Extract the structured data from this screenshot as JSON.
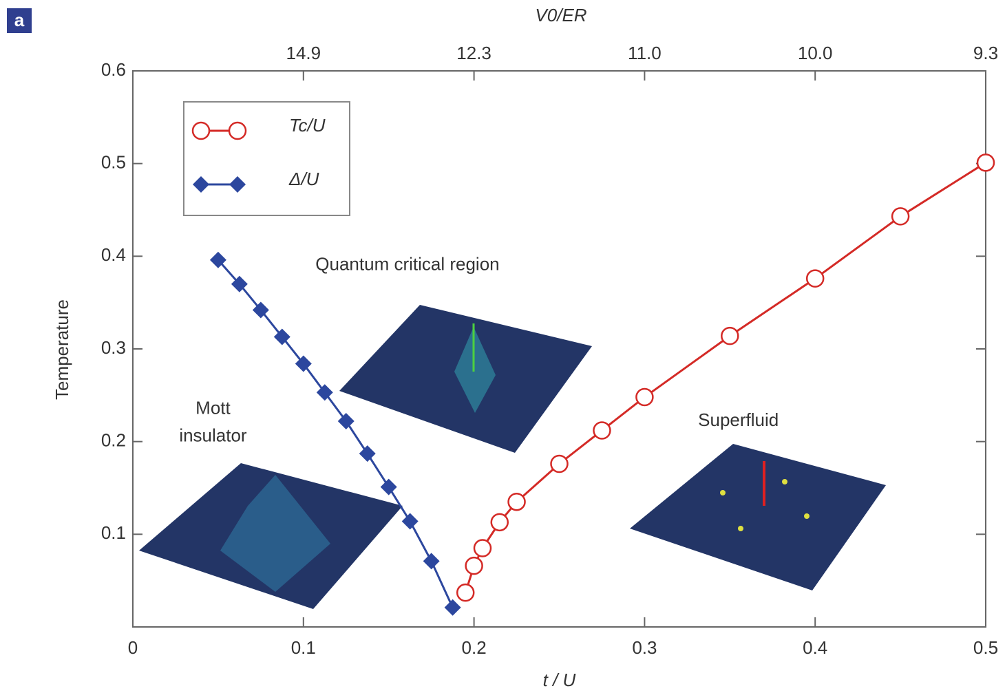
{
  "panel_label": "a",
  "chart_data": {
    "type": "line",
    "xlabel": "t / U",
    "ylabel": "Temperature",
    "x2label": "V0/ER",
    "xlim": [
      0,
      0.5
    ],
    "ylim": [
      0,
      0.6
    ],
    "xticks": [
      0,
      0.1,
      0.2,
      0.3,
      0.4,
      0.5
    ],
    "yticks": [
      0.1,
      0.2,
      0.3,
      0.4,
      0.5,
      0.6
    ],
    "x2ticks": [
      {
        "value": 0.1,
        "label": "14.9"
      },
      {
        "value": 0.2,
        "label": "12.3"
      },
      {
        "value": 0.3,
        "label": "11.0"
      },
      {
        "value": 0.4,
        "label": "10.0"
      },
      {
        "value": 0.5,
        "label": "9.3"
      }
    ],
    "legend": "upper left",
    "series": [
      {
        "name": "Tc/U",
        "color": "#d42a26",
        "marker": "circle",
        "x": [
          0.195,
          0.2,
          0.205,
          0.215,
          0.225,
          0.25,
          0.275,
          0.3,
          0.35,
          0.4,
          0.45,
          0.5
        ],
        "values": [
          0.037,
          0.066,
          0.085,
          0.113,
          0.135,
          0.176,
          0.212,
          0.248,
          0.314,
          0.376,
          0.443,
          0.501
        ]
      },
      {
        "name": "Δ/U",
        "color": "#2c479e",
        "marker": "diamond",
        "x": [
          0.05,
          0.0625,
          0.075,
          0.0875,
          0.1,
          0.1125,
          0.125,
          0.1375,
          0.15,
          0.1625,
          0.175,
          0.1875
        ],
        "values": [
          0.396,
          0.37,
          0.342,
          0.313,
          0.284,
          0.253,
          0.222,
          0.187,
          0.151,
          0.114,
          0.071,
          0.021
        ]
      }
    ],
    "annotations": [
      {
        "lines": [
          "Quantum critical region"
        ],
        "x": 0.161,
        "y": 0.39
      },
      {
        "lines": [
          "Mott",
          "insulator"
        ],
        "x": 0.047,
        "y": 0.235
      },
      {
        "lines": [
          "Superfluid"
        ],
        "x": 0.355,
        "y": 0.222
      }
    ]
  }
}
